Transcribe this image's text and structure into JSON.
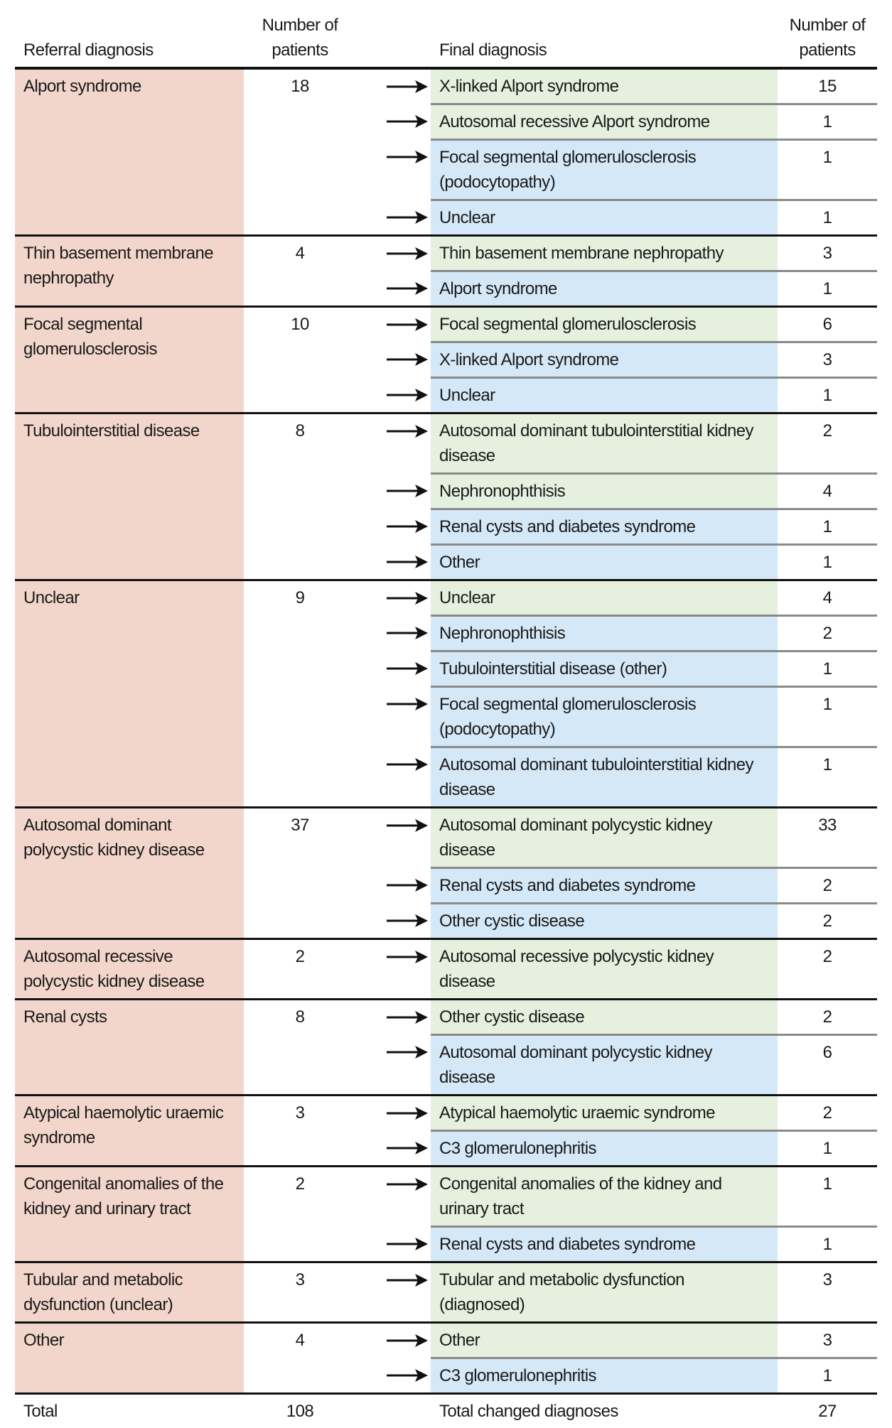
{
  "headers": {
    "referral": "Referral diagnosis",
    "num1": "Number of patients",
    "final": "Final diagnosis",
    "num2": "Number of patients"
  },
  "colors": {
    "referral_bg": "#f2d6cc",
    "confirmed_bg": "#e5f0de",
    "changed_bg": "#d5e8f7"
  },
  "groups": [
    {
      "referral": "Alport syndrome",
      "count": "18",
      "finals": [
        {
          "label": "X-linked Alport syndrome",
          "count": "15",
          "color": "#e5f0de"
        },
        {
          "label": "Autosomal recessive Alport syndrome",
          "count": "1",
          "color": "#e5f0de"
        },
        {
          "label": "Focal segmental glomerulosclerosis (podocytopathy)",
          "count": "1",
          "color": "#d5e8f7"
        },
        {
          "label": "Unclear",
          "count": "1",
          "color": "#d5e8f7"
        }
      ]
    },
    {
      "referral": "Thin basement membrane nephropathy",
      "count": "4",
      "finals": [
        {
          "label": "Thin basement membrane nephropathy",
          "count": "3",
          "color": "#e5f0de"
        },
        {
          "label": "Alport syndrome",
          "count": "1",
          "color": "#d5e8f7"
        }
      ]
    },
    {
      "referral": "Focal segmental glomerulosclerosis",
      "count": "10",
      "finals": [
        {
          "label": "Focal segmental glomerulosclerosis",
          "count": "6",
          "color": "#e5f0de"
        },
        {
          "label": "X-linked Alport syndrome",
          "count": "3",
          "color": "#d5e8f7"
        },
        {
          "label": "Unclear",
          "count": "1",
          "color": "#d5e8f7"
        }
      ]
    },
    {
      "referral": "Tubulointerstitial disease",
      "count": "8",
      "finals": [
        {
          "label": "Autosomal dominant tubulointerstitial kidney disease",
          "count": "2",
          "color": "#e5f0de"
        },
        {
          "label": "Nephronophthisis",
          "count": "4",
          "color": "#e5f0de"
        },
        {
          "label": "Renal cysts and diabetes syndrome",
          "count": "1",
          "color": "#d5e8f7"
        },
        {
          "label": "Other",
          "count": "1",
          "color": "#d5e8f7"
        }
      ]
    },
    {
      "referral": "Unclear",
      "count": "9",
      "finals": [
        {
          "label": "Unclear",
          "count": "4",
          "color": "#e5f0de"
        },
        {
          "label": "Nephronophthisis",
          "count": "2",
          "color": "#d5e8f7"
        },
        {
          "label": "Tubulointerstitial disease (other)",
          "count": "1",
          "color": "#d5e8f7"
        },
        {
          "label": "Focal segmental glomerulosclerosis (podocytopathy)",
          "count": "1",
          "color": "#d5e8f7"
        },
        {
          "label": "Autosomal dominant tubulointerstitial kidney disease",
          "count": "1",
          "color": "#d5e8f7"
        }
      ]
    },
    {
      "referral": "Autosomal dominant polycystic kidney disease",
      "count": "37",
      "finals": [
        {
          "label": "Autosomal dominant polycystic kidney disease",
          "count": "33",
          "color": "#e5f0de"
        },
        {
          "label": "Renal cysts and diabetes syndrome",
          "count": "2",
          "color": "#d5e8f7"
        },
        {
          "label": "Other cystic disease",
          "count": "2",
          "color": "#d5e8f7"
        }
      ]
    },
    {
      "referral": "Autosomal recessive polycystic kidney disease",
      "count": "2",
      "finals": [
        {
          "label": "Autosomal recessive polycystic kidney disease",
          "count": "2",
          "color": "#e5f0de"
        }
      ]
    },
    {
      "referral": "Renal cysts",
      "count": "8",
      "finals": [
        {
          "label": "Other cystic disease",
          "count": "2",
          "color": "#e5f0de"
        },
        {
          "label": "Autosomal dominant polycystic kidney disease",
          "count": "6",
          "color": "#d5e8f7"
        }
      ]
    },
    {
      "referral": "Atypical haemolytic uraemic syndrome",
      "count": "3",
      "finals": [
        {
          "label": "Atypical haemolytic uraemic syndrome",
          "count": "2",
          "color": "#e5f0de"
        },
        {
          "label": "C3 glomerulonephritis",
          "count": "1",
          "color": "#d5e8f7"
        }
      ]
    },
    {
      "referral": "Congenital anomalies of the kidney and urinary tract",
      "count": "2",
      "finals": [
        {
          "label": "Congenital anomalies of the kidney and urinary tract",
          "count": "1",
          "color": "#e5f0de"
        },
        {
          "label": "Renal cysts and diabetes syndrome",
          "count": "1",
          "color": "#d5e8f7"
        }
      ]
    },
    {
      "referral": "Tubular and metabolic dysfunction (unclear)",
      "count": "3",
      "finals": [
        {
          "label": "Tubular and metabolic dysfunction (diagnosed)",
          "count": "3",
          "color": "#e5f0de"
        }
      ]
    },
    {
      "referral": "Other",
      "count": "4",
      "finals": [
        {
          "label": "Other",
          "count": "3",
          "color": "#e5f0de"
        },
        {
          "label": "C3 glomerulonephritis",
          "count": "1",
          "color": "#d5e8f7"
        }
      ]
    }
  ],
  "totals": {
    "label": "Total",
    "count": "108",
    "changed_label": "Total changed diagnoses",
    "changed_count": "27"
  }
}
